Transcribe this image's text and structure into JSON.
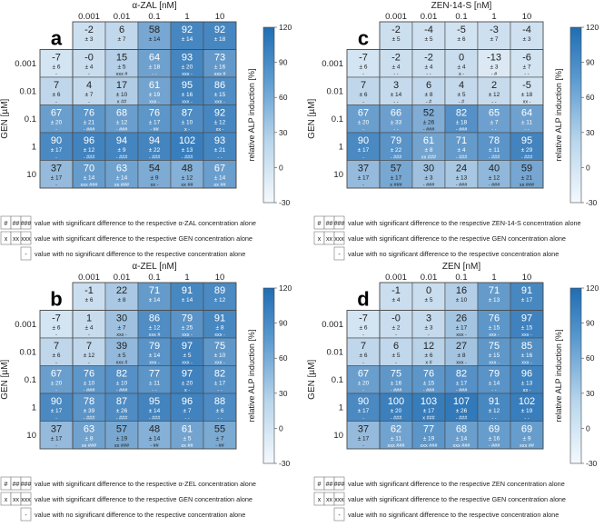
{
  "chart_data": [
    {
      "type": "heatmap",
      "panel": "a",
      "title": "α-ZAL [nM]",
      "xlabel": "α-ZAL [nM]",
      "ylabel": "GEN [µM]",
      "colorbar_label": "relative ALP induction [%]",
      "colorbar_ticks": [
        "120",
        "90",
        "60",
        "30",
        "0",
        "-30"
      ],
      "x_ticks": [
        "0.001",
        "0.01",
        "0.1",
        "1",
        "10"
      ],
      "y_ticks": [
        "0.001",
        "0.01",
        "0.1",
        "1",
        "10"
      ],
      "cells": [
        [
          null,
          {
            "v": "-2",
            "sd": "± 3"
          },
          {
            "v": "6",
            "sd": "± 7"
          },
          {
            "v": "58",
            "sd": "± 14"
          },
          {
            "v": "92",
            "sd": "± 14"
          },
          {
            "v": "92",
            "sd": "± 18"
          }
        ],
        [
          {
            "v": "-7",
            "sd": "± 6",
            "m": "-"
          },
          {
            "v": "-0",
            "sd": "± 4",
            "m": "-"
          },
          {
            "v": "15",
            "sd": "± 5",
            "m": "xxx #"
          },
          {
            "v": "64",
            "sd": "± 18",
            "m": "- -"
          },
          {
            "v": "93",
            "sd": "± 20",
            "m": "xxx -"
          },
          {
            "v": "73",
            "sd": "± 16",
            "m": "xxx #"
          }
        ],
        [
          {
            "v": "7",
            "sd": "± 6",
            "m": "-"
          },
          {
            "v": "4",
            "sd": "± 7",
            "m": "-"
          },
          {
            "v": "17",
            "sd": "± 10",
            "m": "x ##"
          },
          {
            "v": "61",
            "sd": "± 19",
            "m": "xxx -"
          },
          {
            "v": "95",
            "sd": "± 16",
            "m": "xxx -"
          },
          {
            "v": "86",
            "sd": "± 15",
            "m": "xxx -"
          }
        ],
        [
          {
            "v": "67",
            "sd": "± 20",
            "m": "-"
          },
          {
            "v": "76",
            "sd": "± 21",
            "m": "- ###"
          },
          {
            "v": "68",
            "sd": "± 12",
            "m": "- ###"
          },
          {
            "v": "76",
            "sd": "± 17",
            "m": "- ##"
          },
          {
            "v": "87",
            "sd": "± 10",
            "m": "x -"
          },
          {
            "v": "92",
            "sd": "± 12",
            "m": "xx -"
          }
        ],
        [
          {
            "v": "90",
            "sd": "± 17",
            "m": "-"
          },
          {
            "v": "96",
            "sd": "± 12",
            "m": "- ###"
          },
          {
            "v": "94",
            "sd": "± 9",
            "m": "- ###"
          },
          {
            "v": "94",
            "sd": "± 22",
            "m": "- ###"
          },
          {
            "v": "102",
            "sd": "± 13",
            "m": "- ###"
          },
          {
            "v": "93",
            "sd": "± 21",
            "m": "- -"
          }
        ],
        [
          {
            "v": "37",
            "sd": "± 17",
            "m": "-"
          },
          {
            "v": "70",
            "sd": "± 14",
            "m": "xxx ###"
          },
          {
            "v": "63",
            "sd": "± 14",
            "m": "xx ###"
          },
          {
            "v": "54",
            "sd": "± 9",
            "m": "xx -"
          },
          {
            "v": "48",
            "sd": "± 12",
            "m": "xx ##"
          },
          {
            "v": "67",
            "sd": "± 14",
            "m": "xx ##"
          }
        ]
      ]
    },
    {
      "type": "heatmap",
      "panel": "c",
      "title": "ZEN-14-S [nM]",
      "xlabel": "ZEN-14-S [nM]",
      "ylabel": "GEN [µM]",
      "colorbar_label": "relative ALP induction [%]",
      "colorbar_ticks": [
        "120",
        "90",
        "60",
        "30",
        "0",
        "-30"
      ],
      "x_ticks": [
        "0.001",
        "0.01",
        "0.1",
        "1",
        "10"
      ],
      "y_ticks": [
        "0.001",
        "0.01",
        "0.1",
        "1",
        "10"
      ],
      "cells": [
        [
          null,
          {
            "v": "-2",
            "sd": "± 5"
          },
          {
            "v": "-4",
            "sd": "± 5"
          },
          {
            "v": "-5",
            "sd": "± 6"
          },
          {
            "v": "-3",
            "sd": "± 7"
          },
          {
            "v": "-4",
            "sd": "± 3"
          }
        ],
        [
          {
            "v": "-7",
            "sd": "± 6",
            "m": "-"
          },
          {
            "v": "-2",
            "sd": "± 4",
            "m": "- -"
          },
          {
            "v": "-2",
            "sd": "± 4",
            "m": "- -"
          },
          {
            "v": "0",
            "sd": "± 4",
            "m": "x -"
          },
          {
            "v": "-13",
            "sd": "± 3",
            "m": "- #"
          },
          {
            "v": "-6",
            "sd": "± 7",
            "m": "- -"
          }
        ],
        [
          {
            "v": "7",
            "sd": "± 6",
            "m": "-"
          },
          {
            "v": "3",
            "sd": "± 14",
            "m": "- -"
          },
          {
            "v": "6",
            "sd": "± 8",
            "m": "- #"
          },
          {
            "v": "4",
            "sd": "± 5",
            "m": "- #"
          },
          {
            "v": "2",
            "sd": "± 12",
            "m": "- -"
          },
          {
            "v": "-5",
            "sd": "± 18",
            "m": "xx -"
          }
        ],
        [
          {
            "v": "67",
            "sd": "± 20",
            "m": "-"
          },
          {
            "v": "66",
            "sd": "± 33",
            "m": "- -"
          },
          {
            "v": "52",
            "sd": "± 26",
            "m": "- ###"
          },
          {
            "v": "82",
            "sd": "± 18",
            "m": "- ###"
          },
          {
            "v": "65",
            "sd": "± 7",
            "m": "- -"
          },
          {
            "v": "64",
            "sd": "± 11",
            "m": "- -"
          }
        ],
        [
          {
            "v": "90",
            "sd": "± 17",
            "m": "-"
          },
          {
            "v": "79",
            "sd": "± 22",
            "m": "- ###"
          },
          {
            "v": "61",
            "sd": "± 8",
            "m": "xx ###"
          },
          {
            "v": "71",
            "sd": "± 4",
            "m": "- ###"
          },
          {
            "v": "78",
            "sd": "± 11",
            "m": "- ###"
          },
          {
            "v": "95",
            "sd": "± 29",
            "m": "- ###"
          }
        ],
        [
          {
            "v": "37",
            "sd": "± 17",
            "m": "-"
          },
          {
            "v": "57",
            "sd": "± 17",
            "m": "x ###"
          },
          {
            "v": "30",
            "sd": "± 3",
            "m": "- ###"
          },
          {
            "v": "24",
            "sd": "± 13",
            "m": "- ###"
          },
          {
            "v": "40",
            "sd": "± 12",
            "m": "- ###"
          },
          {
            "v": "59",
            "sd": "± 21",
            "m": "xx ###"
          }
        ]
      ]
    },
    {
      "type": "heatmap",
      "panel": "b",
      "title": "α-ZEL [nM]",
      "xlabel": "α-ZEL [nM]",
      "ylabel": "GEN [µM]",
      "colorbar_label": "relative ALP induction [%]",
      "colorbar_ticks": [
        "120",
        "90",
        "60",
        "30",
        "0",
        "-30"
      ],
      "x_ticks": [
        "0.001",
        "0.01",
        "0.1",
        "1",
        "10"
      ],
      "y_ticks": [
        "0.001",
        "0.01",
        "0.1",
        "1",
        "10"
      ],
      "cells": [
        [
          null,
          {
            "v": "-1",
            "sd": "± 6"
          },
          {
            "v": "22",
            "sd": "± 8"
          },
          {
            "v": "71",
            "sd": "± 14"
          },
          {
            "v": "91",
            "sd": "± 14"
          },
          {
            "v": "89",
            "sd": "± 12"
          }
        ],
        [
          {
            "v": "-7",
            "sd": "± 6",
            "m": "-"
          },
          {
            "v": "1",
            "sd": "± 4",
            "m": "-"
          },
          {
            "v": "30",
            "sd": "± 7",
            "m": "xxx -"
          },
          {
            "v": "86",
            "sd": "± 12",
            "m": "xxx #"
          },
          {
            "v": "79",
            "sd": "± 25",
            "m": "xxx -"
          },
          {
            "v": "91",
            "sd": "± 8",
            "m": "xxx -"
          }
        ],
        [
          {
            "v": "7",
            "sd": "± 6",
            "m": "-"
          },
          {
            "v": "7",
            "sd": "± 12",
            "m": "-"
          },
          {
            "v": "39",
            "sd": "± 5",
            "m": "xxx #"
          },
          {
            "v": "79",
            "sd": "± 14",
            "m": "xxx -"
          },
          {
            "v": "97",
            "sd": "± 5",
            "m": "xxx -"
          },
          {
            "v": "75",
            "sd": "± 10",
            "m": "xxx -"
          }
        ],
        [
          {
            "v": "67",
            "sd": "± 20",
            "m": "-"
          },
          {
            "v": "76",
            "sd": "± 10",
            "m": "- ###"
          },
          {
            "v": "82",
            "sd": "± 10",
            "m": "- ###"
          },
          {
            "v": "77",
            "sd": "± 11",
            "m": "- -"
          },
          {
            "v": "97",
            "sd": "± 20",
            "m": "x -"
          },
          {
            "v": "82",
            "sd": "± 17",
            "m": "- -"
          }
        ],
        [
          {
            "v": "90",
            "sd": "± 17",
            "m": "-"
          },
          {
            "v": "78",
            "sd": "± 39",
            "m": "- ###"
          },
          {
            "v": "87",
            "sd": "± 26",
            "m": "- ###"
          },
          {
            "v": "95",
            "sd": "± 14",
            "m": "- ###"
          },
          {
            "v": "96",
            "sd": "± 7",
            "m": "- -"
          },
          {
            "v": "88",
            "sd": "± 6",
            "m": "- -"
          }
        ],
        [
          {
            "v": "37",
            "sd": "± 17",
            "m": "-"
          },
          {
            "v": "63",
            "sd": "± 8",
            "m": "xx ###"
          },
          {
            "v": "57",
            "sd": "± 19",
            "m": "xx ###"
          },
          {
            "v": "48",
            "sd": "± 14",
            "m": "- ##"
          },
          {
            "v": "61",
            "sd": "± 5",
            "m": "xx ##"
          },
          {
            "v": "55",
            "sd": "± 7",
            "m": "- ##"
          }
        ]
      ]
    },
    {
      "type": "heatmap",
      "panel": "d",
      "title": "ZEN [nM]",
      "xlabel": "ZEN [nM]",
      "ylabel": "GEN [µM]",
      "colorbar_label": "relative ALP induction [%]",
      "colorbar_ticks": [
        "120",
        "90",
        "60",
        "30",
        "0",
        "-30"
      ],
      "x_ticks": [
        "0.001",
        "0.01",
        "0.1",
        "1",
        "10"
      ],
      "y_ticks": [
        "0.001",
        "0.01",
        "0.1",
        "1",
        "10"
      ],
      "cells": [
        [
          null,
          {
            "v": "-1",
            "sd": "± 4"
          },
          {
            "v": "0",
            "sd": "± 5"
          },
          {
            "v": "16",
            "sd": "± 10"
          },
          {
            "v": "71",
            "sd": "± 13"
          },
          {
            "v": "91",
            "sd": "± 17"
          }
        ],
        [
          {
            "v": "-7",
            "sd": "± 6",
            "m": "-"
          },
          {
            "v": "-0",
            "sd": "± 2",
            "m": "-"
          },
          {
            "v": "3",
            "sd": "± 3",
            "m": "-"
          },
          {
            "v": "26",
            "sd": "± 17",
            "m": "xxx -"
          },
          {
            "v": "76",
            "sd": "± 15",
            "m": "xxx -"
          },
          {
            "v": "97",
            "sd": "± 15",
            "m": "xxx -"
          }
        ],
        [
          {
            "v": "7",
            "sd": "± 6",
            "m": "-"
          },
          {
            "v": "6",
            "sd": "± 5",
            "m": "-"
          },
          {
            "v": "12",
            "sd": "± 6",
            "m": "x #"
          },
          {
            "v": "27",
            "sd": "± 8",
            "m": "xxx -"
          },
          {
            "v": "75",
            "sd": "± 15",
            "m": "xxx -"
          },
          {
            "v": "85",
            "sd": "± 16",
            "m": "xxx -"
          }
        ],
        [
          {
            "v": "67",
            "sd": "± 20",
            "m": "-"
          },
          {
            "v": "75",
            "sd": "± 16",
            "m": "- ###"
          },
          {
            "v": "76",
            "sd": "± 15",
            "m": "- ###"
          },
          {
            "v": "82",
            "sd": "± 17",
            "m": "- ###"
          },
          {
            "v": "79",
            "sd": "± 14",
            "m": "- -"
          },
          {
            "v": "96",
            "sd": "± 13",
            "m": "xx -"
          }
        ],
        [
          {
            "v": "90",
            "sd": "± 17",
            "m": "-"
          },
          {
            "v": "100",
            "sd": "± 20",
            "m": "- ###"
          },
          {
            "v": "103",
            "sd": "± 17",
            "m": "x ###"
          },
          {
            "v": "107",
            "sd": "± 26",
            "m": "- ###"
          },
          {
            "v": "91",
            "sd": "± 12",
            "m": "- -"
          },
          {
            "v": "102",
            "sd": "± 19",
            "m": "- -"
          }
        ],
        [
          {
            "v": "37",
            "sd": "± 17",
            "m": "-"
          },
          {
            "v": "62",
            "sd": "± 11",
            "m": "xxx ###"
          },
          {
            "v": "77",
            "sd": "± 19",
            "m": "xxx ###"
          },
          {
            "v": "68",
            "sd": "± 14",
            "m": "xxx ###"
          },
          {
            "v": "69",
            "sd": "± 16",
            "m": "- ###"
          },
          {
            "v": "69",
            "sd": "± 9",
            "m": "xxx ##"
          }
        ]
      ]
    }
  ],
  "legends": [
    {
      "hash_syms": [
        "#",
        "##",
        "###"
      ],
      "hash_text": "value with significant difference to the respective α-ZAL concentration alone",
      "x_syms": [
        "x",
        "xx",
        "xxx"
      ],
      "x_text": "value with significant difference to the respective GEN concentration alone",
      "dash_sym": "-",
      "dash_text": "value with no significant difference to the respective concentration alone"
    },
    {
      "hash_syms": [
        "#",
        "##",
        "###"
      ],
      "hash_text": "value with significant difference to the respective ZEN-14-S concentration alone",
      "x_syms": [
        "x",
        "xx",
        "xxx"
      ],
      "x_text": "value with significant difference to the respective GEN concentration alone",
      "dash_sym": "-",
      "dash_text": "value with no significant difference to the respective concentration alone"
    },
    {
      "hash_syms": [
        "#",
        "##",
        "###"
      ],
      "hash_text": "value with significant difference to the respective α-ZEL concentration alone",
      "x_syms": [
        "x",
        "xx",
        "xxx"
      ],
      "x_text": "value with significant difference to the respective GEN concentration alone",
      "dash_sym": "-",
      "dash_text": "value with no significant difference to the respective concentration alone"
    },
    {
      "hash_syms": [
        "#",
        "##",
        "###"
      ],
      "hash_text": "value with significant difference to the respective ZEN concentration alone",
      "x_syms": [
        "x",
        "xx",
        "xxx"
      ],
      "x_text": "value with significant difference to the respective GEN concentration alone",
      "dash_sym": "-",
      "dash_text": "value with no significant difference to the respective concentration alone"
    }
  ],
  "colors": {
    "low": "#f4f9fd",
    "high": "#1f6db3",
    "grid": "#4a4a4a",
    "text_dark": "#222222",
    "text_light": "#ffffff"
  }
}
